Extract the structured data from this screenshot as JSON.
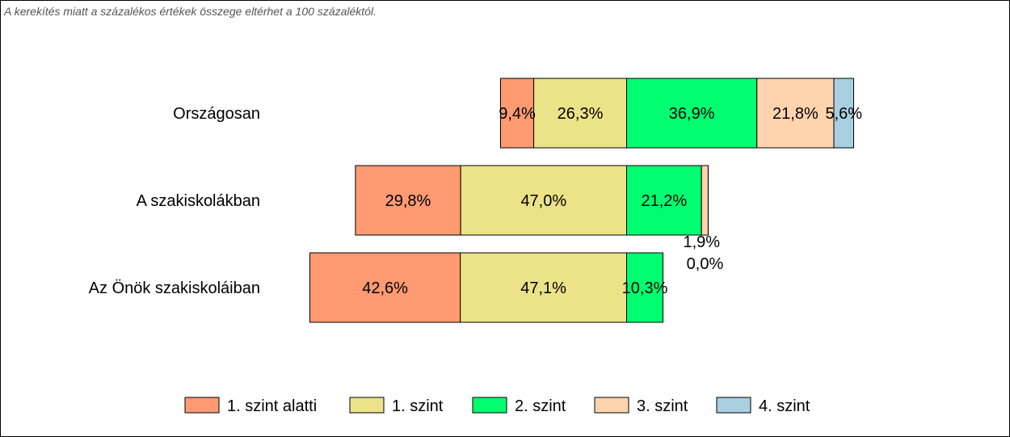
{
  "note": "A kerekítés miatt a  százalékos értékek összege eltérhet a 100 százaléktól.",
  "chart_data": {
    "type": "bar",
    "orientation": "horizontal",
    "stacked": true,
    "categories": [
      "Országosan",
      "A szakiskolákban",
      "Az Önök szakiskoláiban"
    ],
    "series": [
      {
        "name": "1. szint alatti",
        "color": "#FF9A72",
        "values": [
          9.4,
          29.8,
          42.6
        ],
        "labels": [
          "9,4%",
          "29,8%",
          "42,6%"
        ]
      },
      {
        "name": "1. szint",
        "color": "#ECE288",
        "values": [
          26.3,
          47.0,
          47.1
        ],
        "labels": [
          "26,3%",
          "47,0%",
          "47,1%"
        ]
      },
      {
        "name": "2. szint",
        "color": "#00FF70",
        "values": [
          36.9,
          21.2,
          10.3
        ],
        "labels": [
          "36,9%",
          "21,2%",
          "10,3%"
        ]
      },
      {
        "name": "3. szint",
        "color": "#FFD3AE",
        "values": [
          21.8,
          1.9,
          0
        ],
        "labels": [
          "21,8%",
          "1,9%",
          ""
        ]
      },
      {
        "name": "4. szint",
        "color": "#A8D0E0",
        "values": [
          5.6,
          0.0,
          0
        ],
        "labels": [
          "5,6%",
          "0,0%",
          ""
        ]
      }
    ],
    "legend_position": "bottom",
    "grid": false
  }
}
